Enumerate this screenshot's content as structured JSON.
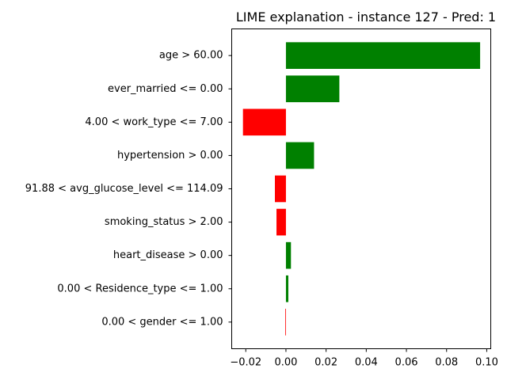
{
  "chart_data": {
    "type": "bar",
    "orientation": "horizontal",
    "title": "LIME explanation - instance 127 - Pred: 1",
    "xlabel": "",
    "ylabel": "",
    "xlim": [
      -0.027,
      0.102
    ],
    "xticks": [
      -0.02,
      0.0,
      0.02,
      0.04,
      0.06,
      0.08,
      0.1
    ],
    "xtick_labels": [
      "−0.02",
      "0.00",
      "0.02",
      "0.04",
      "0.06",
      "0.08",
      "0.10"
    ],
    "grid": false,
    "categories": [
      "age > 60.00",
      "ever_married <= 0.00",
      "4.00 < work_type <= 7.00",
      "hypertension > 0.00",
      "91.88 < avg_glucose_level <= 114.09",
      "smoking_status > 2.00",
      "heart_disease > 0.00",
      "0.00 < Residence_type <= 1.00",
      "0.00 < gender <= 1.00"
    ],
    "values": [
      0.0967,
      0.0266,
      -0.0214,
      0.014,
      -0.0055,
      -0.0047,
      0.0025,
      0.0012,
      -0.0003
    ],
    "colors": {
      "positive": "#008000",
      "negative": "#ff0000"
    }
  }
}
